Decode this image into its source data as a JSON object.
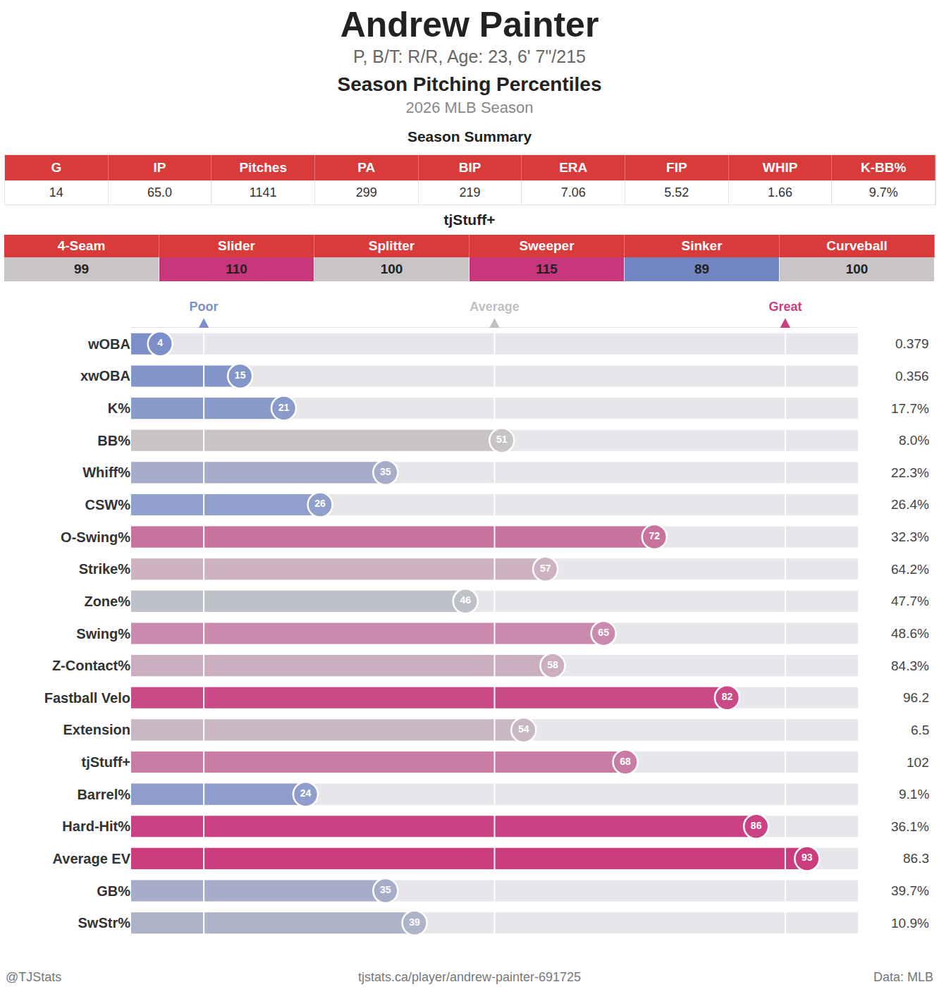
{
  "header": {
    "name": "Andrew Painter",
    "info": "P, B/T: R/R, Age: 23, 6' 7\"/215",
    "subtitle": "Season Pitching Percentiles",
    "season": "2026 MLB Season"
  },
  "summary": {
    "title": "Season Summary",
    "columns": [
      "G",
      "IP",
      "Pitches",
      "PA",
      "BIP",
      "ERA",
      "FIP",
      "WHIP",
      "K-BB%"
    ],
    "values": [
      "14",
      "65.0",
      "1141",
      "299",
      "219",
      "7.06",
      "5.52",
      "1.66",
      "9.7%"
    ]
  },
  "stuff": {
    "title": "tjStuff+",
    "columns": [
      "4-Seam",
      "Slider",
      "Splitter",
      "Sweeper",
      "Sinker",
      "Curveball"
    ],
    "values": [
      99,
      110,
      100,
      115,
      89,
      100
    ],
    "colors": [
      "#c9c5c6",
      "#c8377c",
      "#c9c5c6",
      "#c8377c",
      "#7186c3",
      "#c9c5c6"
    ]
  },
  "chart_data": {
    "type": "bar",
    "orientation": "horizontal",
    "data_labels": true,
    "grid": true,
    "categories": [
      "wOBA",
      "xwOBA",
      "K%",
      "BB%",
      "Whiff%",
      "CSW%",
      "O-Swing%",
      "Strike%",
      "Zone%",
      "Swing%",
      "Z-Contact%",
      "Fastball Velo",
      "Extension",
      "tjStuff+",
      "Barrel%",
      "Hard-Hit%",
      "Average EV",
      "GB%",
      "SwStr%"
    ],
    "values": [
      4,
      15,
      21,
      51,
      35,
      26,
      72,
      57,
      46,
      65,
      58,
      82,
      54,
      68,
      24,
      86,
      93,
      35,
      39
    ],
    "colors": [
      "#7c8fc9",
      "#8296c9",
      "#8a9bca",
      "#c8c4c6",
      "#a6adc9",
      "#909fcb",
      "#c8739e",
      "#cdb2c2",
      "#bec2c8",
      "#c98aad",
      "#cbaec0",
      "#ca4a88",
      "#c9b7c4",
      "#c87ca4",
      "#8e9dcb",
      "#cb4284",
      "#cb3d7f",
      "#a6adc9",
      "#aeb4c8"
    ],
    "stats": [
      "0.379",
      "0.356",
      "17.7%",
      "8.0%",
      "22.3%",
      "26.4%",
      "32.3%",
      "64.2%",
      "47.7%",
      "48.6%",
      "84.3%",
      "96.2",
      "6.5",
      "102",
      "9.1%",
      "36.1%",
      "86.3",
      "39.7%",
      "10.9%"
    ],
    "xlim": [
      0,
      100
    ],
    "xticks": [
      {
        "value": 10,
        "label": "Poor"
      },
      {
        "value": 50,
        "label": "Average"
      },
      {
        "value": 90,
        "label": "Great"
      }
    ]
  },
  "footer": {
    "left": "@TJStats",
    "center": "tjstats.ca/player/andrew-painter-691725",
    "right": "Data: MLB"
  }
}
